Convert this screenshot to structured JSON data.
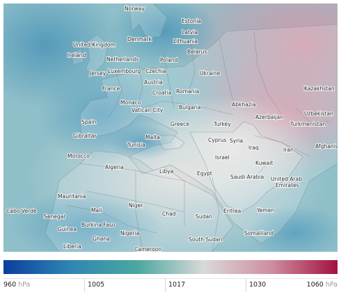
{
  "map": {
    "labels": [
      {
        "id": "norway",
        "text": "Norway"
      },
      {
        "id": "estonia",
        "text": "Estonia"
      },
      {
        "id": "latvia",
        "text": "Latvia"
      },
      {
        "id": "denmark",
        "text": "Denmark"
      },
      {
        "id": "lithuania",
        "text": "Lithuania"
      },
      {
        "id": "united-kingdom",
        "text": "United Kingdom"
      },
      {
        "id": "belarus",
        "text": "Belarus"
      },
      {
        "id": "ireland",
        "text": "Ireland"
      },
      {
        "id": "netherlands",
        "text": "Netherlands"
      },
      {
        "id": "poland",
        "text": "Poland"
      },
      {
        "id": "jersey",
        "text": "Jersey"
      },
      {
        "id": "luxembourg",
        "text": "Luxembourg"
      },
      {
        "id": "czechia",
        "text": "Czechia"
      },
      {
        "id": "ukraine",
        "text": "Ukraine"
      },
      {
        "id": "austria",
        "text": "Austria"
      },
      {
        "id": "france",
        "text": "France"
      },
      {
        "id": "croatia",
        "text": "Croatia"
      },
      {
        "id": "romania",
        "text": "Romania"
      },
      {
        "id": "kazakhstan",
        "text": "Kazakhstan"
      },
      {
        "id": "monaco",
        "text": "Monaco"
      },
      {
        "id": "vatican-city",
        "text": "Vatican City"
      },
      {
        "id": "bulgaria",
        "text": "Bulgaria"
      },
      {
        "id": "abkhazia",
        "text": "Abkhazia"
      },
      {
        "id": "uzbekistan",
        "text": "Uzbekistan"
      },
      {
        "id": "azerbaijan",
        "text": "Azerbaijan"
      },
      {
        "id": "turkmenistan",
        "text": "Turkmenistan"
      },
      {
        "id": "spain",
        "text": "Spain"
      },
      {
        "id": "greece",
        "text": "Greece"
      },
      {
        "id": "turkey",
        "text": "Turkey"
      },
      {
        "id": "malta",
        "text": "Malta"
      },
      {
        "id": "gibraltar",
        "text": "Gibraltar"
      },
      {
        "id": "cyprus",
        "text": "Cyprus"
      },
      {
        "id": "syria",
        "text": "Syria"
      },
      {
        "id": "tunisia",
        "text": "Tunisia"
      },
      {
        "id": "iraq",
        "text": "Iraq"
      },
      {
        "id": "iran",
        "text": "Iran"
      },
      {
        "id": "afghanistan",
        "text": "Afghanist"
      },
      {
        "id": "israel",
        "text": "Israel"
      },
      {
        "id": "morocco",
        "text": "Morocco"
      },
      {
        "id": "kuwait",
        "text": "Kuwait"
      },
      {
        "id": "algeria",
        "text": "Algeria"
      },
      {
        "id": "libya",
        "text": "Libya"
      },
      {
        "id": "egypt",
        "text": "Egypt"
      },
      {
        "id": "saudi-arabia",
        "text": "Saudi Arabia"
      },
      {
        "id": "uae-1",
        "text": "United Arab"
      },
      {
        "id": "uae-2",
        "text": "Emirates"
      },
      {
        "id": "mauritania",
        "text": "Mauritania"
      },
      {
        "id": "niger",
        "text": "Niger"
      },
      {
        "id": "mali",
        "text": "Mali"
      },
      {
        "id": "eritrea",
        "text": "Eritrea"
      },
      {
        "id": "yemen",
        "text": "Yemen"
      },
      {
        "id": "cabo-verde",
        "text": "Cabo Verde"
      },
      {
        "id": "senegal",
        "text": "Senegal"
      },
      {
        "id": "chad",
        "text": "Chad"
      },
      {
        "id": "sudan",
        "text": "Sudan"
      },
      {
        "id": "guinea",
        "text": "Guinea"
      },
      {
        "id": "burkina-faso",
        "text": "Burkina Faso"
      },
      {
        "id": "nigeria",
        "text": "Nigeria"
      },
      {
        "id": "somaliland",
        "text": "Somaliland"
      },
      {
        "id": "ghana",
        "text": "Ghana"
      },
      {
        "id": "south-sudan",
        "text": "South Sudan"
      },
      {
        "id": "liberia",
        "text": "Liberia"
      },
      {
        "id": "cameroon",
        "text": "Cameroon"
      }
    ]
  },
  "legend": {
    "colors": [
      "#0b3e9e",
      "#2f86b3",
      "#4aa89f",
      "#d9d9d9",
      "#cf8f9f",
      "#a3123f"
    ],
    "ticks": [
      {
        "value": "960",
        "unit": "hPa"
      },
      {
        "value": "1005",
        "unit": ""
      },
      {
        "value": "1017",
        "unit": ""
      },
      {
        "value": "1030",
        "unit": ""
      },
      {
        "value": "1060",
        "unit": "hPa"
      }
    ]
  }
}
